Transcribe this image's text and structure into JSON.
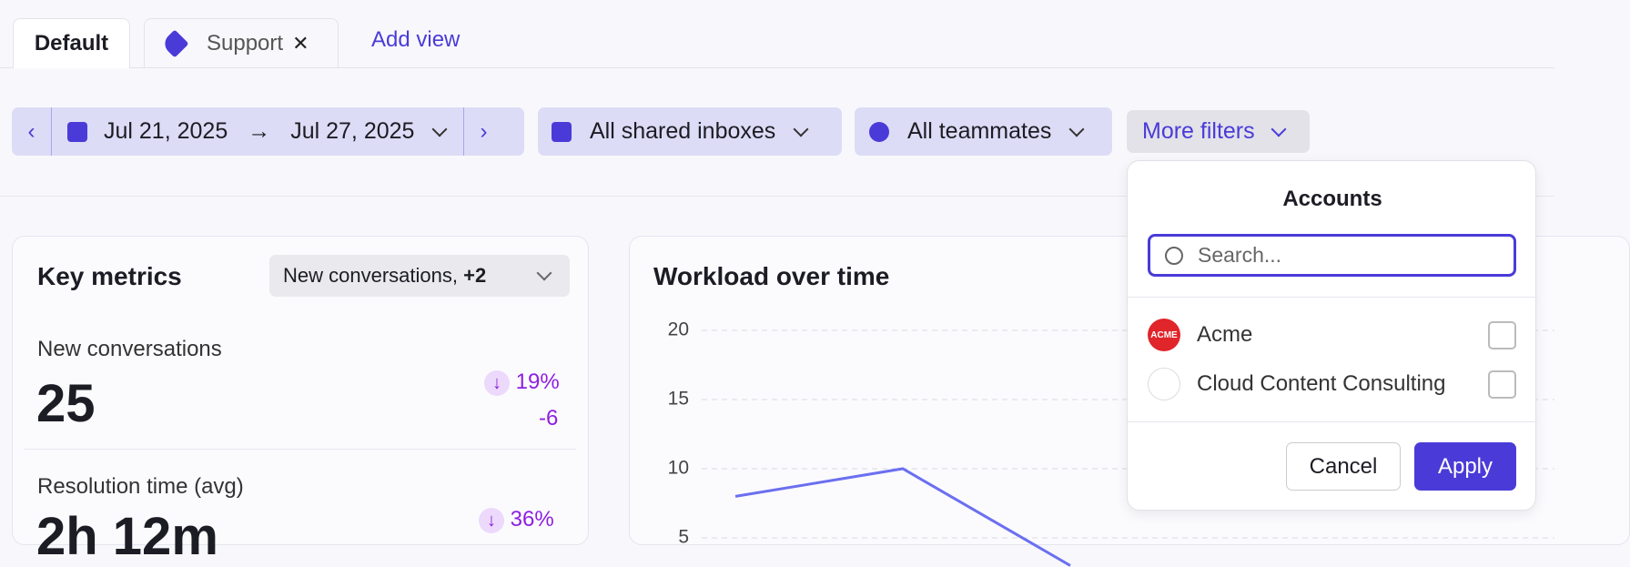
{
  "tabs": {
    "items": [
      {
        "label": "Default"
      },
      {
        "label": "Support"
      }
    ],
    "add_view": "Add view"
  },
  "filters": {
    "date_start": "Jul 21, 2025",
    "date_end": "Jul 27, 2025",
    "inboxes": "All shared inboxes",
    "teammates": "All teammates",
    "more": "More filters"
  },
  "key_metrics": {
    "title": "Key metrics",
    "selector": "New conversations,",
    "selector_extra": "+2",
    "metrics": [
      {
        "label": "New conversations",
        "value": "25",
        "change": "19%",
        "delta": "-6"
      },
      {
        "label": "Resolution time (avg)",
        "value": "2h 12m",
        "change": "36%"
      }
    ]
  },
  "workload": {
    "title": "Workload over time",
    "ylim": [
      0,
      20
    ],
    "yticks": [
      5,
      10,
      15,
      20
    ],
    "values": [
      8,
      10,
      3
    ]
  },
  "accounts": {
    "title": "Accounts",
    "search_placeholder": "Search...",
    "options": [
      {
        "label": "Acme",
        "logo": "ACME"
      },
      {
        "label": "Cloud Content Consulting"
      }
    ],
    "cancel": "Cancel",
    "apply": "Apply"
  }
}
